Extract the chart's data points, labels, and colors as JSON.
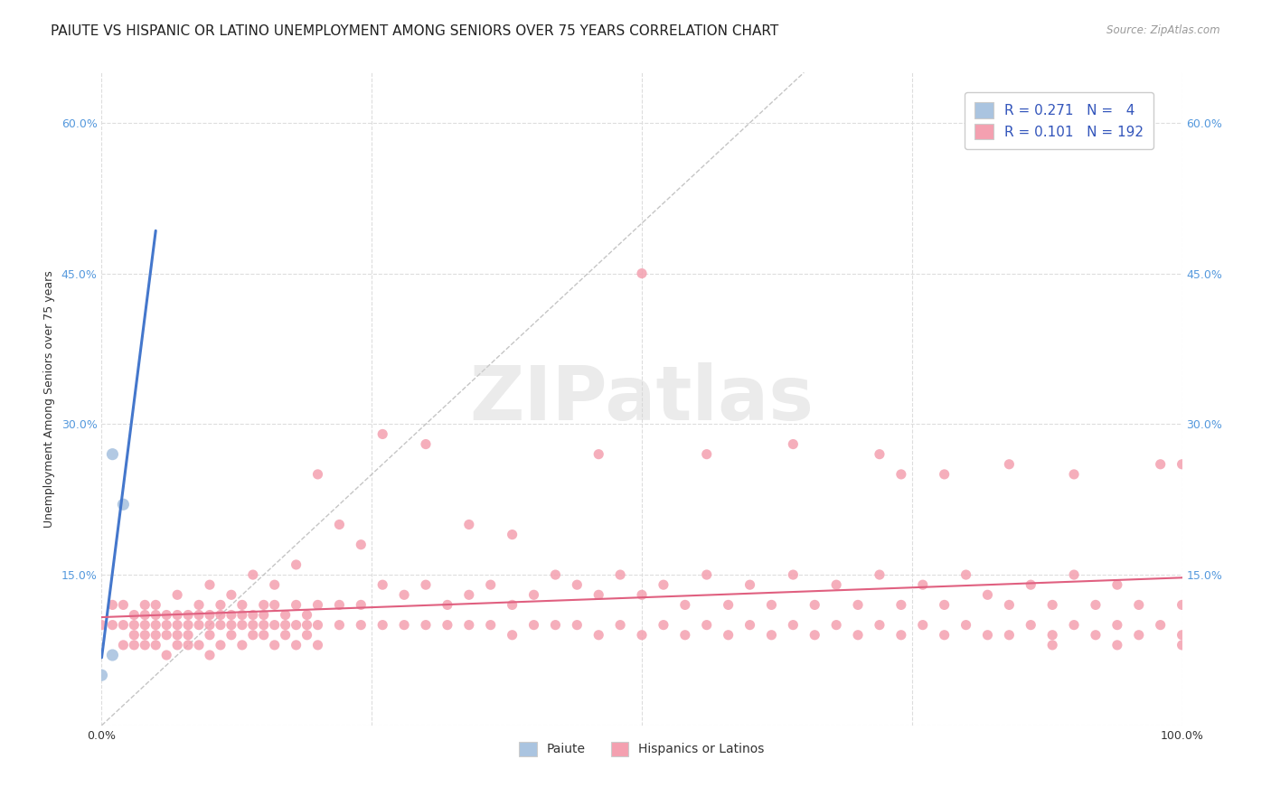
{
  "title": "PAIUTE VS HISPANIC OR LATINO UNEMPLOYMENT AMONG SENIORS OVER 75 YEARS CORRELATION CHART",
  "source": "Source: ZipAtlas.com",
  "ylabel": "Unemployment Among Seniors over 75 years",
  "x_min": 0.0,
  "x_max": 1.0,
  "y_min": 0.0,
  "y_max": 0.65,
  "x_ticks": [
    0.0,
    0.25,
    0.5,
    0.75,
    1.0
  ],
  "y_ticks": [
    0.0,
    0.15,
    0.3,
    0.45,
    0.6
  ],
  "y_tick_labels": [
    "",
    "15.0%",
    "30.0%",
    "45.0%",
    "60.0%"
  ],
  "paiute_color": "#aac4e0",
  "hispanic_color": "#f4a0b0",
  "paiute_trend_color": "#4477cc",
  "hispanic_trend_color": "#e06080",
  "diag_line_color": "#bbbbbb",
  "watermark": "ZIPatlas",
  "paiute_points": [
    [
      0.01,
      0.27
    ],
    [
      0.02,
      0.22
    ],
    [
      0.01,
      0.07
    ],
    [
      0.0,
      0.05
    ]
  ],
  "hispanic_points": [
    [
      0.0,
      0.1
    ],
    [
      0.01,
      0.1
    ],
    [
      0.01,
      0.12
    ],
    [
      0.02,
      0.08
    ],
    [
      0.02,
      0.1
    ],
    [
      0.02,
      0.12
    ],
    [
      0.03,
      0.08
    ],
    [
      0.03,
      0.09
    ],
    [
      0.03,
      0.1
    ],
    [
      0.03,
      0.11
    ],
    [
      0.04,
      0.08
    ],
    [
      0.04,
      0.09
    ],
    [
      0.04,
      0.1
    ],
    [
      0.04,
      0.11
    ],
    [
      0.04,
      0.12
    ],
    [
      0.05,
      0.08
    ],
    [
      0.05,
      0.09
    ],
    [
      0.05,
      0.1
    ],
    [
      0.05,
      0.11
    ],
    [
      0.05,
      0.12
    ],
    [
      0.06,
      0.07
    ],
    [
      0.06,
      0.09
    ],
    [
      0.06,
      0.1
    ],
    [
      0.06,
      0.11
    ],
    [
      0.07,
      0.08
    ],
    [
      0.07,
      0.09
    ],
    [
      0.07,
      0.1
    ],
    [
      0.07,
      0.11
    ],
    [
      0.07,
      0.13
    ],
    [
      0.08,
      0.08
    ],
    [
      0.08,
      0.09
    ],
    [
      0.08,
      0.1
    ],
    [
      0.08,
      0.11
    ],
    [
      0.09,
      0.08
    ],
    [
      0.09,
      0.1
    ],
    [
      0.09,
      0.11
    ],
    [
      0.09,
      0.12
    ],
    [
      0.1,
      0.07
    ],
    [
      0.1,
      0.09
    ],
    [
      0.1,
      0.1
    ],
    [
      0.1,
      0.11
    ],
    [
      0.1,
      0.14
    ],
    [
      0.11,
      0.08
    ],
    [
      0.11,
      0.1
    ],
    [
      0.11,
      0.11
    ],
    [
      0.11,
      0.12
    ],
    [
      0.12,
      0.09
    ],
    [
      0.12,
      0.1
    ],
    [
      0.12,
      0.11
    ],
    [
      0.12,
      0.13
    ],
    [
      0.13,
      0.08
    ],
    [
      0.13,
      0.1
    ],
    [
      0.13,
      0.11
    ],
    [
      0.13,
      0.12
    ],
    [
      0.14,
      0.09
    ],
    [
      0.14,
      0.1
    ],
    [
      0.14,
      0.11
    ],
    [
      0.14,
      0.15
    ],
    [
      0.15,
      0.09
    ],
    [
      0.15,
      0.1
    ],
    [
      0.15,
      0.11
    ],
    [
      0.15,
      0.12
    ],
    [
      0.16,
      0.08
    ],
    [
      0.16,
      0.1
    ],
    [
      0.16,
      0.12
    ],
    [
      0.16,
      0.14
    ],
    [
      0.17,
      0.09
    ],
    [
      0.17,
      0.1
    ],
    [
      0.17,
      0.11
    ],
    [
      0.18,
      0.08
    ],
    [
      0.18,
      0.1
    ],
    [
      0.18,
      0.12
    ],
    [
      0.18,
      0.16
    ],
    [
      0.19,
      0.09
    ],
    [
      0.19,
      0.1
    ],
    [
      0.19,
      0.11
    ],
    [
      0.2,
      0.08
    ],
    [
      0.2,
      0.1
    ],
    [
      0.2,
      0.12
    ],
    [
      0.2,
      0.25
    ],
    [
      0.22,
      0.1
    ],
    [
      0.22,
      0.12
    ],
    [
      0.22,
      0.2
    ],
    [
      0.24,
      0.1
    ],
    [
      0.24,
      0.12
    ],
    [
      0.24,
      0.18
    ],
    [
      0.26,
      0.1
    ],
    [
      0.26,
      0.14
    ],
    [
      0.26,
      0.29
    ],
    [
      0.28,
      0.1
    ],
    [
      0.28,
      0.13
    ],
    [
      0.3,
      0.1
    ],
    [
      0.3,
      0.14
    ],
    [
      0.3,
      0.28
    ],
    [
      0.32,
      0.1
    ],
    [
      0.32,
      0.12
    ],
    [
      0.34,
      0.1
    ],
    [
      0.34,
      0.13
    ],
    [
      0.34,
      0.2
    ],
    [
      0.36,
      0.1
    ],
    [
      0.36,
      0.14
    ],
    [
      0.38,
      0.09
    ],
    [
      0.38,
      0.12
    ],
    [
      0.38,
      0.19
    ],
    [
      0.4,
      0.1
    ],
    [
      0.4,
      0.13
    ],
    [
      0.42,
      0.1
    ],
    [
      0.42,
      0.15
    ],
    [
      0.44,
      0.1
    ],
    [
      0.44,
      0.14
    ],
    [
      0.46,
      0.09
    ],
    [
      0.46,
      0.13
    ],
    [
      0.46,
      0.27
    ],
    [
      0.48,
      0.1
    ],
    [
      0.48,
      0.15
    ],
    [
      0.5,
      0.09
    ],
    [
      0.5,
      0.13
    ],
    [
      0.5,
      0.45
    ],
    [
      0.52,
      0.1
    ],
    [
      0.52,
      0.14
    ],
    [
      0.54,
      0.09
    ],
    [
      0.54,
      0.12
    ],
    [
      0.56,
      0.1
    ],
    [
      0.56,
      0.15
    ],
    [
      0.56,
      0.27
    ],
    [
      0.58,
      0.09
    ],
    [
      0.58,
      0.12
    ],
    [
      0.6,
      0.1
    ],
    [
      0.6,
      0.14
    ],
    [
      0.62,
      0.09
    ],
    [
      0.62,
      0.12
    ],
    [
      0.64,
      0.1
    ],
    [
      0.64,
      0.15
    ],
    [
      0.64,
      0.28
    ],
    [
      0.66,
      0.09
    ],
    [
      0.66,
      0.12
    ],
    [
      0.68,
      0.1
    ],
    [
      0.68,
      0.14
    ],
    [
      0.7,
      0.09
    ],
    [
      0.7,
      0.12
    ],
    [
      0.72,
      0.1
    ],
    [
      0.72,
      0.15
    ],
    [
      0.72,
      0.27
    ],
    [
      0.74,
      0.09
    ],
    [
      0.74,
      0.12
    ],
    [
      0.74,
      0.25
    ],
    [
      0.76,
      0.1
    ],
    [
      0.76,
      0.14
    ],
    [
      0.78,
      0.09
    ],
    [
      0.78,
      0.12
    ],
    [
      0.78,
      0.25
    ],
    [
      0.8,
      0.1
    ],
    [
      0.8,
      0.15
    ],
    [
      0.82,
      0.09
    ],
    [
      0.82,
      0.13
    ],
    [
      0.84,
      0.09
    ],
    [
      0.84,
      0.12
    ],
    [
      0.84,
      0.26
    ],
    [
      0.86,
      0.1
    ],
    [
      0.86,
      0.14
    ],
    [
      0.88,
      0.09
    ],
    [
      0.88,
      0.12
    ],
    [
      0.88,
      0.08
    ],
    [
      0.9,
      0.1
    ],
    [
      0.9,
      0.15
    ],
    [
      0.9,
      0.25
    ],
    [
      0.92,
      0.09
    ],
    [
      0.92,
      0.12
    ],
    [
      0.94,
      0.1
    ],
    [
      0.94,
      0.14
    ],
    [
      0.94,
      0.08
    ],
    [
      0.96,
      0.09
    ],
    [
      0.96,
      0.12
    ],
    [
      0.98,
      0.1
    ],
    [
      0.98,
      0.26
    ],
    [
      1.0,
      0.09
    ],
    [
      1.0,
      0.12
    ],
    [
      1.0,
      0.08
    ],
    [
      1.0,
      0.26
    ]
  ],
  "background_color": "#ffffff",
  "grid_color": "#dddddd",
  "title_fontsize": 11,
  "axis_label_fontsize": 9,
  "tick_fontsize": 9,
  "legend_fontsize": 11
}
